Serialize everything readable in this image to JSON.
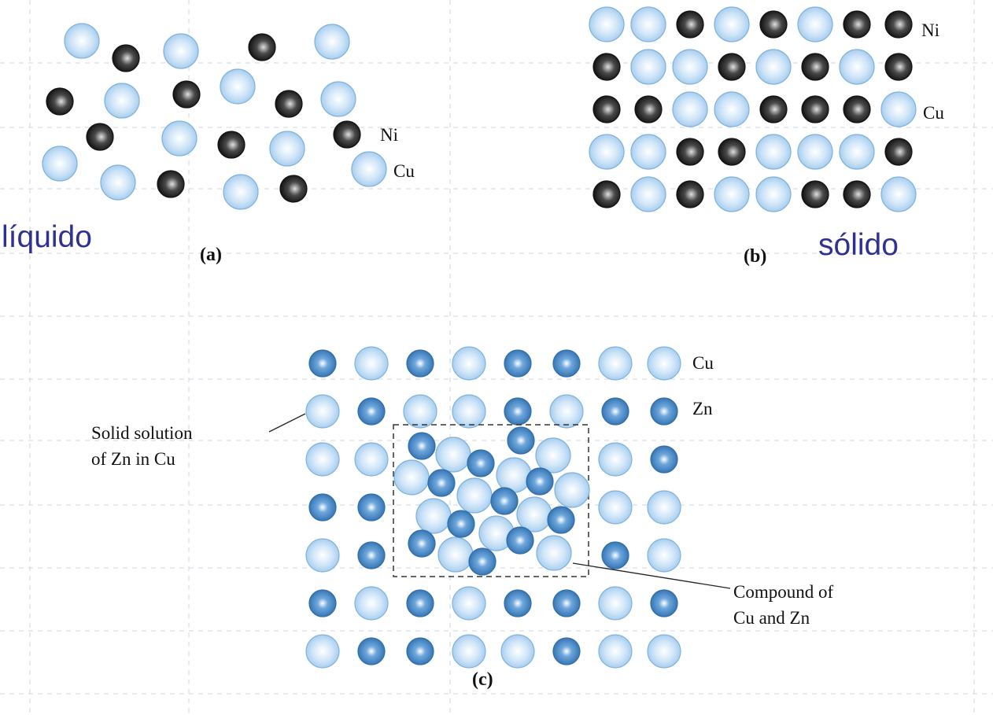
{
  "colors": {
    "cu_fill": "#bcd9f3",
    "cu_edge": "#7fb2dc",
    "ni_fill": "#3a3a3a",
    "ni_edge": "#111111",
    "zn_fill": "#4f8fcf",
    "zn_edge": "#2f6da9",
    "state_label": "#2e3192"
  },
  "panel_a": {
    "caption": "(a)",
    "state_label": "líquido",
    "ni_label": "Ni",
    "cu_label": "Cu",
    "atom_legend": [
      "ni-atom",
      "cu-atom"
    ]
  },
  "panel_b": {
    "caption": "(b)",
    "state_label": "sólido",
    "ni_label": "Ni",
    "cu_label": "Cu",
    "lattice_rows": [
      "CCNCNCNN",
      "NCCNCNCN",
      "NNCCNNNC",
      "CCNNCCCN",
      "NCNCCNNC"
    ]
  },
  "panel_c": {
    "caption": "(c)",
    "cu_label": "Cu",
    "zn_label": "Zn",
    "solid_solution_label": [
      "Solid solution",
      "of Zn in Cu"
    ],
    "compound_label": [
      "Compound of",
      "Cu and Zn"
    ],
    "lattice_rows": [
      "ZCZCZZCC",
      "CZCCZCZZ",
      "CC....CZ",
      "ZZ....CC",
      "CZ....ZC",
      "ZCZCZZCZ",
      "CZZCCZCC"
    ]
  }
}
